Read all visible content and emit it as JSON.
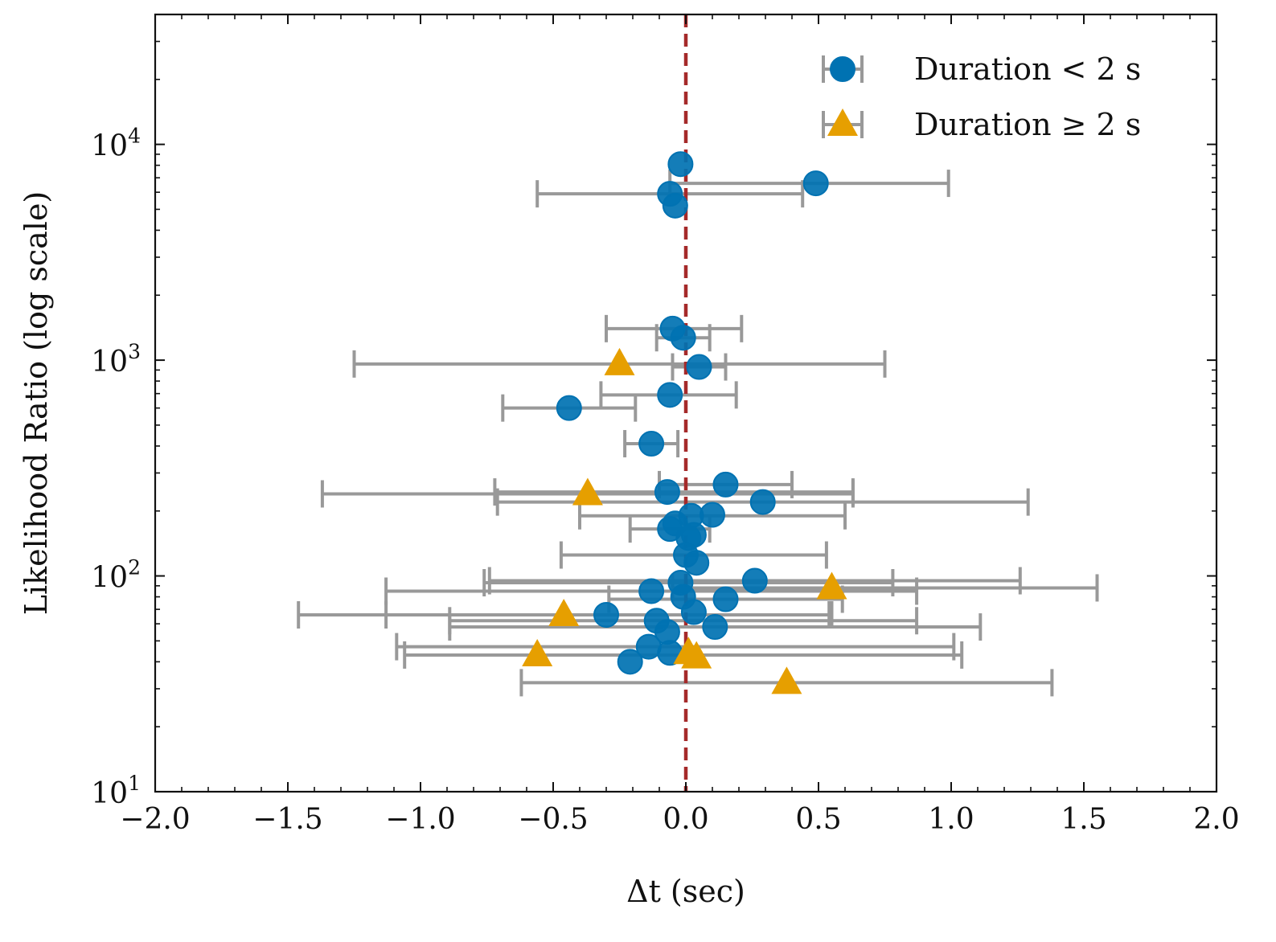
{
  "chart_data": {
    "type": "scatter",
    "title": "",
    "xlabel": "Δt (sec)",
    "ylabel": "Likelihood Ratio (log scale)",
    "xlim": [
      -2.0,
      2.0
    ],
    "ylim": [
      10,
      40000
    ],
    "yscale": "log",
    "x_ticks": [
      -2.0,
      -1.5,
      -1.0,
      -0.5,
      0.0,
      0.5,
      1.0,
      1.5,
      2.0
    ],
    "x_tick_labels": [
      "−2.0",
      "−1.5",
      "−1.0",
      "−0.5",
      "0.0",
      "0.5",
      "1.0",
      "1.5",
      "2.0"
    ],
    "y_ticks": [
      {
        "value": 10,
        "base": "10",
        "exp": "1"
      },
      {
        "value": 100,
        "base": "10",
        "exp": "2"
      },
      {
        "value": 1000,
        "base": "10",
        "exp": "3"
      },
      {
        "value": 10000,
        "base": "10",
        "exp": "4"
      }
    ],
    "reference_line": {
      "x": 0.0,
      "color": "#a52a2a",
      "style": "dashed"
    },
    "errorbar_color": "#999999",
    "legend_position": "top-right",
    "series": [
      {
        "name": "Duration",
        "legend_label": "Duration",
        "legend_relation": "<",
        "legend_value": "2 s",
        "marker": "circle",
        "color": "#0072b2",
        "points": [
          {
            "x": -0.02,
            "y": 8100,
            "xerr_lo": 0.0,
            "xerr_hi": 0.0
          },
          {
            "x": 0.49,
            "y": 6600,
            "xerr_lo": 0.55,
            "xerr_hi": 0.5
          },
          {
            "x": -0.06,
            "y": 5900,
            "xerr_lo": 0.5,
            "xerr_hi": 0.5
          },
          {
            "x": -0.04,
            "y": 5200,
            "xerr_lo": 0.0,
            "xerr_hi": 0.0
          },
          {
            "x": -0.05,
            "y": 1400,
            "xerr_lo": 0.25,
            "xerr_hi": 0.26
          },
          {
            "x": -0.01,
            "y": 1270,
            "xerr_lo": 0.1,
            "xerr_hi": 0.1
          },
          {
            "x": 0.05,
            "y": 930,
            "xerr_lo": 0.1,
            "xerr_hi": 0.1
          },
          {
            "x": -0.06,
            "y": 690,
            "xerr_lo": 0.26,
            "xerr_hi": 0.25
          },
          {
            "x": -0.44,
            "y": 600,
            "xerr_lo": 0.25,
            "xerr_hi": 0.25
          },
          {
            "x": -0.13,
            "y": 410,
            "xerr_lo": 0.1,
            "xerr_hi": 0.1
          },
          {
            "x": 0.15,
            "y": 265,
            "xerr_lo": 0.25,
            "xerr_hi": 0.25
          },
          {
            "x": -0.07,
            "y": 245,
            "xerr_lo": 0.65,
            "xerr_hi": 0.7
          },
          {
            "x": 0.29,
            "y": 220,
            "xerr_lo": 1.0,
            "xerr_hi": 1.0
          },
          {
            "x": 0.02,
            "y": 190,
            "xerr_lo": 0.42,
            "xerr_hi": 0.58
          },
          {
            "x": 0.1,
            "y": 192,
            "xerr_lo": 0.0,
            "xerr_hi": 0.0
          },
          {
            "x": -0.04,
            "y": 175,
            "xerr_lo": 0.0,
            "xerr_hi": 0.0
          },
          {
            "x": -0.06,
            "y": 165,
            "xerr_lo": 0.15,
            "xerr_hi": 0.15
          },
          {
            "x": 0.01,
            "y": 150,
            "xerr_lo": 0.0,
            "xerr_hi": 0.0
          },
          {
            "x": 0.03,
            "y": 155,
            "xerr_lo": 0.0,
            "xerr_hi": 0.0
          },
          {
            "x": 0.0,
            "y": 125,
            "xerr_lo": 0.47,
            "xerr_hi": 0.53
          },
          {
            "x": 0.04,
            "y": 115,
            "xerr_lo": 0.0,
            "xerr_hi": 0.0
          },
          {
            "x": 0.26,
            "y": 95,
            "xerr_lo": 1.0,
            "xerr_hi": 1.0
          },
          {
            "x": -0.02,
            "y": 93,
            "xerr_lo": 0.74,
            "xerr_hi": 0.8
          },
          {
            "x": -0.13,
            "y": 85,
            "xerr_lo": 1.0,
            "xerr_hi": 1.0
          },
          {
            "x": 0.15,
            "y": 78,
            "xerr_lo": 0.44,
            "xerr_hi": 0.44
          },
          {
            "x": -0.01,
            "y": 80,
            "xerr_lo": 0.0,
            "xerr_hi": 0.0
          },
          {
            "x": 0.03,
            "y": 68,
            "xerr_lo": 0.0,
            "xerr_hi": 0.0
          },
          {
            "x": -0.3,
            "y": 66,
            "xerr_lo": 0.83,
            "xerr_hi": 0.85
          },
          {
            "x": -0.11,
            "y": 62,
            "xerr_lo": 0.78,
            "xerr_hi": 0.98
          },
          {
            "x": 0.11,
            "y": 58,
            "xerr_lo": 1.0,
            "xerr_hi": 1.0
          },
          {
            "x": -0.07,
            "y": 55,
            "xerr_lo": 0.0,
            "xerr_hi": 0.0
          },
          {
            "x": -0.14,
            "y": 47,
            "xerr_lo": 0.95,
            "xerr_hi": 1.15
          },
          {
            "x": -0.06,
            "y": 44,
            "xerr_lo": 0.0,
            "xerr_hi": 0.0
          },
          {
            "x": -0.21,
            "y": 40,
            "xerr_lo": 0.0,
            "xerr_hi": 0.0
          }
        ]
      },
      {
        "name": "Duration",
        "legend_label": "Duration",
        "legend_relation": "≥",
        "legend_value": "2 s",
        "marker": "triangle",
        "color": "#e69f00",
        "points": [
          {
            "x": -0.25,
            "y": 960,
            "xerr_lo": 1.0,
            "xerr_hi": 1.0
          },
          {
            "x": -0.37,
            "y": 240,
            "xerr_lo": 1.0,
            "xerr_hi": 1.0
          },
          {
            "x": 0.55,
            "y": 88,
            "xerr_lo": 0.6,
            "xerr_hi": 1.0
          },
          {
            "x": -0.46,
            "y": 66,
            "xerr_lo": 1.0,
            "xerr_hi": 1.0
          },
          {
            "x": -0.56,
            "y": 43,
            "xerr_lo": 0.5,
            "xerr_hi": 1.6
          },
          {
            "x": 0.01,
            "y": 44,
            "xerr_lo": 0.0,
            "xerr_hi": 0.0
          },
          {
            "x": 0.04,
            "y": 42,
            "xerr_lo": 0.0,
            "xerr_hi": 0.0
          },
          {
            "x": 0.38,
            "y": 32,
            "xerr_lo": 1.0,
            "xerr_hi": 1.0
          }
        ]
      }
    ]
  }
}
